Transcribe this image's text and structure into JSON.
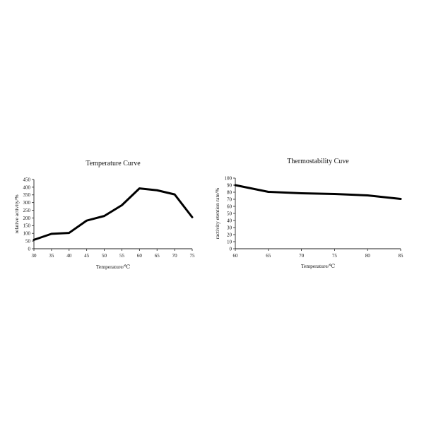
{
  "chart_data": [
    {
      "type": "line",
      "title": "Temperature Curve",
      "xlabel": "Temperature/℃",
      "ylabel": "relative activity/%",
      "x": [
        30,
        35,
        40,
        45,
        50,
        55,
        60,
        65,
        70,
        75
      ],
      "xticks": [
        30,
        35,
        40,
        45,
        50,
        55,
        60,
        65,
        70,
        75
      ],
      "yticks": [
        0,
        50,
        100,
        150,
        200,
        250,
        300,
        350,
        400,
        450
      ],
      "xlim": [
        30,
        75
      ],
      "ylim": [
        0,
        450
      ],
      "grid": false,
      "series": [
        {
          "values": [
            58,
            97,
            103,
            183,
            213,
            283,
            392,
            380,
            353,
            205
          ]
        }
      ]
    },
    {
      "type": "line",
      "title": "Thermostability Cuve",
      "xlabel": "Temperature/℃",
      "ylabel": "ractivity etention rate/%",
      "x": [
        60,
        65,
        70,
        75,
        80,
        85
      ],
      "xticks": [
        60,
        65,
        70,
        75,
        80,
        85
      ],
      "yticks": [
        0,
        10,
        20,
        30,
        40,
        50,
        60,
        70,
        80,
        90,
        100
      ],
      "xlim": [
        60,
        85
      ],
      "ylim": [
        0,
        100
      ],
      "grid": false,
      "series": [
        {
          "values": [
            90,
            80.5,
            78.5,
            77.5,
            75.5,
            70.5
          ]
        }
      ]
    }
  ]
}
